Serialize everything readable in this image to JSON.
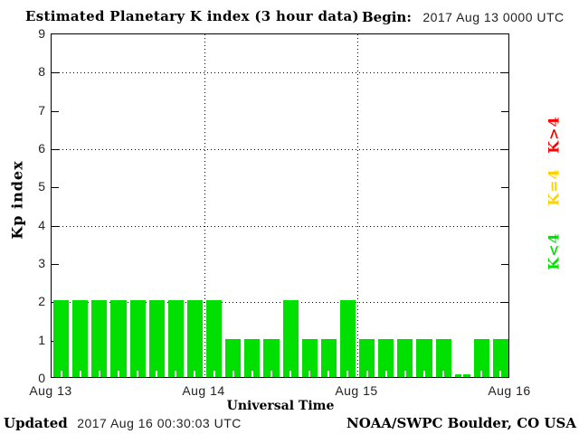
{
  "header": {
    "title": "Estimated Planetary K index (3 hour data)",
    "begin_label": "Begin:",
    "begin_value": "2017 Aug 13 0000 UTC"
  },
  "chart_data": {
    "type": "bar",
    "title": "Estimated Planetary K index (3 hour data)",
    "xlabel": "Universal Time",
    "ylabel": "Kp index",
    "ylim": [
      0,
      9
    ],
    "ytick_labels": [
      "0",
      "1",
      "2",
      "3",
      "4",
      "5",
      "6",
      "7",
      "8",
      "9"
    ],
    "grid_y_values": [
      2,
      4,
      6,
      8
    ],
    "x_day_labels": [
      "Aug 13",
      "Aug 14",
      "Aug 15",
      "Aug 16"
    ],
    "bar_interval_hours": 3,
    "values": [
      2,
      2,
      2,
      2,
      2,
      2,
      2,
      2,
      2,
      1,
      1,
      1,
      2,
      1,
      1,
      2,
      1,
      1,
      1,
      1,
      1,
      0,
      1,
      1
    ],
    "bar_color": "#00e000",
    "grid": true,
    "legend_position": "right",
    "legend": [
      {
        "label": "K>4",
        "color": "#ff0000"
      },
      {
        "label": "K=4",
        "color": "#ffd000"
      },
      {
        "label": "K<4",
        "color": "#00e000"
      }
    ]
  },
  "footer": {
    "updated_label": "Updated",
    "updated_value": "2017 Aug 16 00:30:03 UTC",
    "credit": "NOAA/SWPC Boulder, CO USA"
  }
}
